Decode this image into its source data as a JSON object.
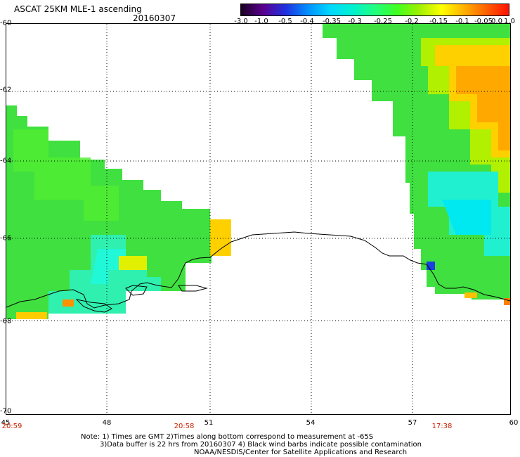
{
  "header": {
    "title": "ASCAT 25KM MLE-1 ascending",
    "date": "20160307"
  },
  "colorbar": {
    "labels": [
      "-3.0",
      "-1.0",
      "-0.5",
      "-0.4",
      "-0.35",
      "-0.3",
      "-0.25",
      "-0.2",
      "-0.15",
      "-0.1",
      "-0.05",
      "0.0",
      "1.0"
    ],
    "colors": [
      "#1a0022",
      "#5a0090",
      "#2030e0",
      "#0090ff",
      "#00d8ff",
      "#00f0d0",
      "#20ff80",
      "#40ff20",
      "#a0f000",
      "#ffff00",
      "#ffb000",
      "#ff6000",
      "#ff1000"
    ]
  },
  "axes": {
    "y_ticks": [
      "-60",
      "-62",
      "-64",
      "-66",
      "-68",
      "-70"
    ],
    "x_ticks": [
      "45",
      "48",
      "51",
      "54",
      "57",
      "60"
    ]
  },
  "time_labels": [
    "20:59",
    "20:58",
    "17:38"
  ],
  "notes": {
    "line1": "Note: 1) Times are GMT 2)Times along bottom correspond to measurement at -65S",
    "line2": "3)Data buffer is 22 hrs from 20160307 4) Black wind barbs indicate possible contamination",
    "line3": "NOAA/NESDIS/Center for Satellite Applications and Research"
  }
}
